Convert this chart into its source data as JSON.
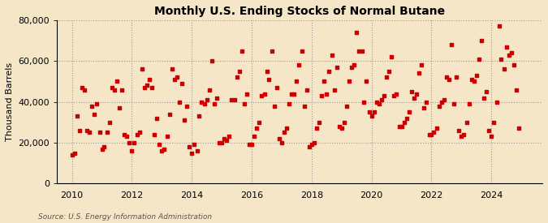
{
  "title": "Monthly U.S. Ending Stocks of Normal Butane",
  "ylabel": "Thousand Barrels",
  "source": "Source: U.S. Energy Information Administration",
  "background_color": "#f5e6c8",
  "marker_color": "#cc0000",
  "marker_size": 6,
  "xlim": [
    2009.5,
    2025.7
  ],
  "ylim": [
    0,
    80000
  ],
  "yticks": [
    0,
    20000,
    40000,
    60000,
    80000
  ],
  "xticks": [
    2010,
    2012,
    2014,
    2016,
    2018,
    2020,
    2022,
    2024
  ],
  "data": [
    [
      2010.0,
      14000
    ],
    [
      2010.08,
      15000
    ],
    [
      2010.17,
      33000
    ],
    [
      2010.25,
      26000
    ],
    [
      2010.33,
      47000
    ],
    [
      2010.42,
      46000
    ],
    [
      2010.5,
      26000
    ],
    [
      2010.58,
      25000
    ],
    [
      2010.67,
      38000
    ],
    [
      2010.75,
      34000
    ],
    [
      2010.83,
      39000
    ],
    [
      2010.92,
      25000
    ],
    [
      2011.0,
      17000
    ],
    [
      2011.08,
      18000
    ],
    [
      2011.17,
      25000
    ],
    [
      2011.25,
      30000
    ],
    [
      2011.33,
      47000
    ],
    [
      2011.42,
      46000
    ],
    [
      2011.5,
      50000
    ],
    [
      2011.58,
      37000
    ],
    [
      2011.67,
      46000
    ],
    [
      2011.75,
      24000
    ],
    [
      2011.83,
      23000
    ],
    [
      2011.92,
      20000
    ],
    [
      2012.0,
      16000
    ],
    [
      2012.08,
      20000
    ],
    [
      2012.17,
      24000
    ],
    [
      2012.25,
      25000
    ],
    [
      2012.33,
      56000
    ],
    [
      2012.42,
      47000
    ],
    [
      2012.5,
      48000
    ],
    [
      2012.58,
      51000
    ],
    [
      2012.67,
      47000
    ],
    [
      2012.75,
      24000
    ],
    [
      2012.83,
      32000
    ],
    [
      2012.92,
      19000
    ],
    [
      2013.0,
      16000
    ],
    [
      2013.08,
      17000
    ],
    [
      2013.17,
      23000
    ],
    [
      2013.25,
      34000
    ],
    [
      2013.33,
      56000
    ],
    [
      2013.42,
      51000
    ],
    [
      2013.5,
      52000
    ],
    [
      2013.58,
      40000
    ],
    [
      2013.67,
      49000
    ],
    [
      2013.75,
      31000
    ],
    [
      2013.83,
      38000
    ],
    [
      2013.92,
      18000
    ],
    [
      2014.0,
      15000
    ],
    [
      2014.08,
      19000
    ],
    [
      2014.17,
      16000
    ],
    [
      2014.25,
      33000
    ],
    [
      2014.33,
      40000
    ],
    [
      2014.42,
      39000
    ],
    [
      2014.5,
      41000
    ],
    [
      2014.58,
      46000
    ],
    [
      2014.67,
      60000
    ],
    [
      2014.75,
      39000
    ],
    [
      2014.83,
      42000
    ],
    [
      2014.92,
      20000
    ],
    [
      2015.0,
      20000
    ],
    [
      2015.08,
      22000
    ],
    [
      2015.17,
      21000
    ],
    [
      2015.25,
      23000
    ],
    [
      2015.33,
      41000
    ],
    [
      2015.42,
      41000
    ],
    [
      2015.5,
      52000
    ],
    [
      2015.58,
      55000
    ],
    [
      2015.67,
      65000
    ],
    [
      2015.75,
      39000
    ],
    [
      2015.83,
      44000
    ],
    [
      2015.92,
      19000
    ],
    [
      2016.0,
      19000
    ],
    [
      2016.08,
      23000
    ],
    [
      2016.17,
      27000
    ],
    [
      2016.25,
      30000
    ],
    [
      2016.33,
      43000
    ],
    [
      2016.42,
      44000
    ],
    [
      2016.5,
      55000
    ],
    [
      2016.58,
      51000
    ],
    [
      2016.67,
      65000
    ],
    [
      2016.75,
      38000
    ],
    [
      2016.83,
      47000
    ],
    [
      2016.92,
      22000
    ],
    [
      2017.0,
      20000
    ],
    [
      2017.08,
      25000
    ],
    [
      2017.17,
      27000
    ],
    [
      2017.25,
      39000
    ],
    [
      2017.33,
      44000
    ],
    [
      2017.42,
      44000
    ],
    [
      2017.5,
      50000
    ],
    [
      2017.58,
      58000
    ],
    [
      2017.67,
      65000
    ],
    [
      2017.75,
      38000
    ],
    [
      2017.83,
      46000
    ],
    [
      2017.92,
      18000
    ],
    [
      2018.0,
      19000
    ],
    [
      2018.08,
      20000
    ],
    [
      2018.17,
      27000
    ],
    [
      2018.25,
      30000
    ],
    [
      2018.33,
      43000
    ],
    [
      2018.42,
      50000
    ],
    [
      2018.5,
      44000
    ],
    [
      2018.58,
      55000
    ],
    [
      2018.67,
      63000
    ],
    [
      2018.75,
      46000
    ],
    [
      2018.83,
      57000
    ],
    [
      2018.92,
      28000
    ],
    [
      2019.0,
      27000
    ],
    [
      2019.08,
      30000
    ],
    [
      2019.17,
      38000
    ],
    [
      2019.25,
      50000
    ],
    [
      2019.33,
      57000
    ],
    [
      2019.42,
      58000
    ],
    [
      2019.5,
      74000
    ],
    [
      2019.58,
      65000
    ],
    [
      2019.67,
      65000
    ],
    [
      2019.75,
      40000
    ],
    [
      2019.83,
      50000
    ],
    [
      2019.92,
      35000
    ],
    [
      2020.0,
      33000
    ],
    [
      2020.08,
      35000
    ],
    [
      2020.17,
      40000
    ],
    [
      2020.25,
      39000
    ],
    [
      2020.33,
      41000
    ],
    [
      2020.42,
      43000
    ],
    [
      2020.5,
      52000
    ],
    [
      2020.58,
      55000
    ],
    [
      2020.67,
      62000
    ],
    [
      2020.75,
      43000
    ],
    [
      2020.83,
      44000
    ],
    [
      2020.92,
      28000
    ],
    [
      2021.0,
      28000
    ],
    [
      2021.08,
      30000
    ],
    [
      2021.17,
      32000
    ],
    [
      2021.25,
      35000
    ],
    [
      2021.33,
      45000
    ],
    [
      2021.42,
      42000
    ],
    [
      2021.5,
      44000
    ],
    [
      2021.58,
      54000
    ],
    [
      2021.67,
      58000
    ],
    [
      2021.75,
      37000
    ],
    [
      2021.83,
      40000
    ],
    [
      2021.92,
      24000
    ],
    [
      2022.0,
      24000
    ],
    [
      2022.08,
      25000
    ],
    [
      2022.17,
      27000
    ],
    [
      2022.25,
      38000
    ],
    [
      2022.33,
      40000
    ],
    [
      2022.42,
      41000
    ],
    [
      2022.5,
      52000
    ],
    [
      2022.58,
      51000
    ],
    [
      2022.67,
      68000
    ],
    [
      2022.75,
      39000
    ],
    [
      2022.83,
      52000
    ],
    [
      2022.92,
      26000
    ],
    [
      2023.0,
      23000
    ],
    [
      2023.08,
      24000
    ],
    [
      2023.17,
      30000
    ],
    [
      2023.25,
      39000
    ],
    [
      2023.33,
      51000
    ],
    [
      2023.42,
      50000
    ],
    [
      2023.5,
      53000
    ],
    [
      2023.58,
      61000
    ],
    [
      2023.67,
      70000
    ],
    [
      2023.75,
      42000
    ],
    [
      2023.83,
      45000
    ],
    [
      2023.92,
      26000
    ],
    [
      2024.0,
      23000
    ],
    [
      2024.08,
      30000
    ],
    [
      2024.17,
      40000
    ],
    [
      2024.25,
      77000
    ],
    [
      2024.33,
      61000
    ],
    [
      2024.42,
      56000
    ],
    [
      2024.5,
      67000
    ],
    [
      2024.58,
      63000
    ],
    [
      2024.67,
      64000
    ],
    [
      2024.75,
      58000
    ],
    [
      2024.83,
      46000
    ],
    [
      2024.92,
      27000
    ]
  ]
}
